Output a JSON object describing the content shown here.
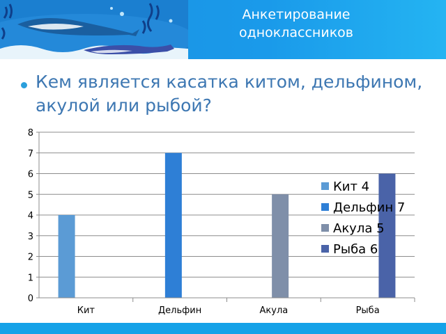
{
  "header": {
    "title_line1": "Анкетирование",
    "title_line2": "одноклассников"
  },
  "bullet": {
    "text": "Кем является касатка китом, дельфином, акулой или рыбой?"
  },
  "chart_data": {
    "type": "bar",
    "categories": [
      "Кит",
      "Дельфин",
      "Акула",
      "Рыба"
    ],
    "series": [
      {
        "name": "Кит 4",
        "values": [
          4,
          null,
          null,
          null
        ],
        "color": "#5b9bd5"
      },
      {
        "name": "Дельфин 7",
        "values": [
          null,
          7,
          null,
          null
        ],
        "color": "#2e7fd6"
      },
      {
        "name": "Акула 5",
        "values": [
          null,
          null,
          5,
          null
        ],
        "color": "#7f8fa9"
      },
      {
        "name": "Рыба 6",
        "values": [
          null,
          null,
          null,
          6
        ],
        "color": "#4a63a8"
      }
    ],
    "ylim": [
      0,
      8
    ],
    "yticks": [
      0,
      1,
      2,
      3,
      4,
      5,
      6,
      7,
      8
    ],
    "grid": true,
    "legend": "right"
  },
  "colors": {
    "header_bg": "#1a9aea",
    "footer_bg": "#16a2e8",
    "bullet_text": "#3d77b2"
  }
}
